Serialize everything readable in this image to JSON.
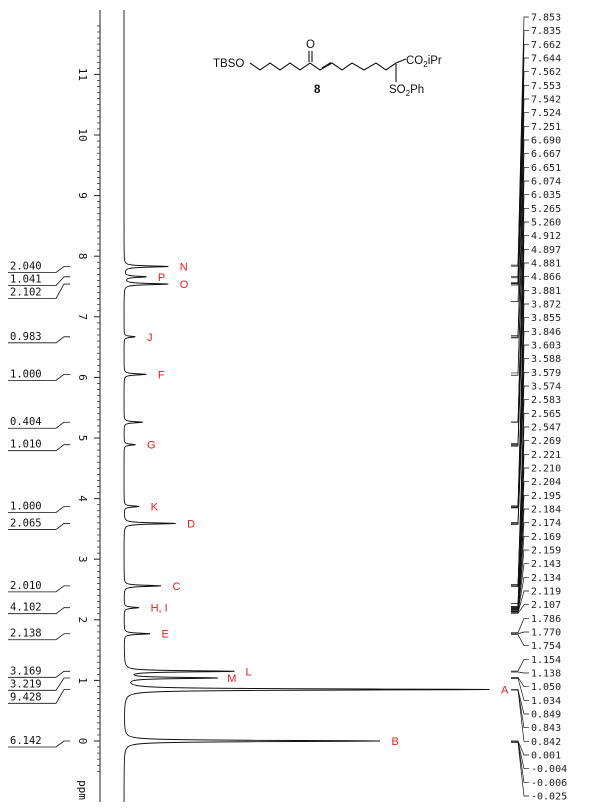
{
  "figure": {
    "axis_unit": "ppm",
    "ppm_ticks": [
      0,
      1,
      2,
      3,
      4,
      5,
      6,
      7,
      8,
      9,
      10,
      11
    ]
  },
  "structure": {
    "left_group": "TBSO",
    "ketone": "O",
    "ester_group": "CO",
    "ester_sub": "2",
    "ester_tail": "iPr",
    "sulfonyl_group": "SO",
    "sulfonyl_sub": "2",
    "sulfonyl_tail": "Ph",
    "compound_number": "8"
  },
  "chart_data": {
    "type": "line",
    "x_unit": "ppm",
    "xlim": [
      12,
      -0.5
    ],
    "peaks": [
      {
        "label": "N",
        "ppm": 7.83,
        "rel_height": 0.12
      },
      {
        "label": "P",
        "ppm": 7.66,
        "rel_height": 0.06
      },
      {
        "label": "O",
        "ppm": 7.54,
        "rel_height": 0.12
      },
      {
        "label": "J",
        "ppm": 6.67,
        "rel_height": 0.03
      },
      {
        "label": "F",
        "ppm": 6.05,
        "rel_height": 0.06
      },
      {
        "label": "",
        "ppm": 5.26,
        "rel_height": 0.05
      },
      {
        "label": "G",
        "ppm": 4.89,
        "rel_height": 0.03
      },
      {
        "label": "K",
        "ppm": 3.87,
        "rel_height": 0.04
      },
      {
        "label": "D",
        "ppm": 3.59,
        "rel_height": 0.14
      },
      {
        "label": "C",
        "ppm": 2.56,
        "rel_height": 0.1
      },
      {
        "label": "H, I",
        "ppm": 2.2,
        "rel_height": 0.04
      },
      {
        "label": "E",
        "ppm": 1.77,
        "rel_height": 0.07
      },
      {
        "label": "L",
        "ppm": 1.15,
        "rel_height": 0.3
      },
      {
        "label": "M",
        "ppm": 1.04,
        "rel_height": 0.25
      },
      {
        "label": "A",
        "ppm": 0.85,
        "rel_height": 1.0
      },
      {
        "label": "B",
        "ppm": 0.0,
        "rel_height": 0.7
      }
    ],
    "integrals": [
      {
        "value": "2.040",
        "ppm": 7.83
      },
      {
        "value": "1.041",
        "ppm": 7.66
      },
      {
        "value": "2.102",
        "ppm": 7.54
      },
      {
        "value": "0.983",
        "ppm": 6.67
      },
      {
        "value": "1.000",
        "ppm": 6.05
      },
      {
        "value": "0.404",
        "ppm": 5.26
      },
      {
        "value": "1.010",
        "ppm": 4.89
      },
      {
        "value": "1.000",
        "ppm": 3.87
      },
      {
        "value": "2.065",
        "ppm": 3.59
      },
      {
        "value": "2.010",
        "ppm": 2.56
      },
      {
        "value": "4.102",
        "ppm": 2.2
      },
      {
        "value": "2.138",
        "ppm": 1.77
      },
      {
        "value": "3.169",
        "ppm": 1.15
      },
      {
        "value": "3.219",
        "ppm": 1.04
      },
      {
        "value": "9.428",
        "ppm": 0.85
      },
      {
        "value": "6.142",
        "ppm": 0.0
      }
    ],
    "shift_list": [
      "7.853",
      "7.835",
      "7.662",
      "7.644",
      "7.562",
      "7.553",
      "7.542",
      "7.524",
      "7.251",
      "6.690",
      "6.667",
      "6.651",
      "6.074",
      "6.035",
      "5.265",
      "5.260",
      "4.912",
      "4.897",
      "4.881",
      "4.866",
      "3.881",
      "3.872",
      "3.855",
      "3.846",
      "3.603",
      "3.588",
      "3.579",
      "3.574",
      "2.583",
      "2.565",
      "2.547",
      "2.269",
      "2.221",
      "2.210",
      "2.204",
      "2.195",
      "2.184",
      "2.174",
      "2.169",
      "2.159",
      "2.143",
      "2.134",
      "2.119",
      "2.107",
      "1.786",
      "1.770",
      "1.754",
      "1.154",
      "1.138",
      "1.050",
      "1.034",
      "0.849",
      "0.843",
      "0.842",
      "0.001",
      "-0.004",
      "-0.006",
      "-0.025"
    ]
  }
}
